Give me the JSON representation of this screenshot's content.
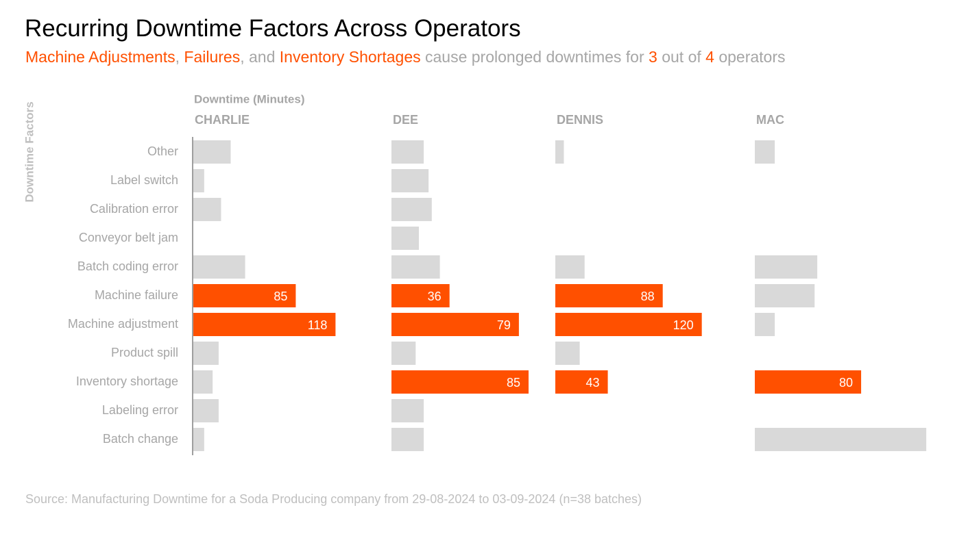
{
  "chart_data": {
    "type": "bar",
    "title": "Recurring Downtime Factors Across Operators",
    "subtitle": [
      {
        "text": "Machine Adjustments",
        "color": "#ff5000"
      },
      {
        "text": ", ",
        "color": "#a6a6a6"
      },
      {
        "text": "Failures",
        "color": "#ff5000"
      },
      {
        "text": ", and ",
        "color": "#a6a6a6"
      },
      {
        "text": "Inventory Shortages",
        "color": "#ff5000"
      },
      {
        "text": " cause prolonged downtimes for ",
        "color": "#a6a6a6"
      },
      {
        "text": "3",
        "color": "#ff5000"
      },
      {
        "text": " out of ",
        "color": "#a6a6a6"
      },
      {
        "text": "4",
        "color": "#ff5000"
      },
      {
        "text": " operators",
        "color": "#a6a6a6"
      }
    ],
    "x_label": "Downtime (Minutes)",
    "y_label": "Downtime Factors",
    "source": "Source: Manufacturing Downtime for a Soda Producing company from 29-08-2024 to 03-09-2024  (n=38 batches)",
    "color": "#d9d9d9",
    "categories": [
      "Other",
      "Label switch",
      "Calibration error",
      "Conveyor belt jam",
      "Batch coding error",
      "Machine failure",
      "Machine adjustment",
      "Product spill",
      "Inventory shortage",
      "Labeling error",
      "Batch change"
    ],
    "series": [
      {
        "name": "CHARLIE",
        "xlim": [
          0,
          165
        ],
        "values": [
          31,
          9,
          23,
          null,
          43,
          85,
          118,
          21,
          16,
          21,
          9
        ],
        "colors": [
          "#d9d9d9",
          "#d9d9d9",
          "#d9d9d9",
          "#d9d9d9",
          "#d9d9d9",
          "#ff5000",
          "#ff5000",
          "#d9d9d9",
          "#d9d9d9",
          "#d9d9d9",
          "#d9d9d9"
        ]
      },
      {
        "name": "DEE",
        "xlim": [
          0,
          102
        ],
        "values": [
          20,
          23,
          25,
          17,
          30,
          36,
          79,
          15,
          85,
          20,
          20
        ],
        "colors": [
          "#d9d9d9",
          "#d9d9d9",
          "#d9d9d9",
          "#d9d9d9",
          "#d9d9d9",
          "#ff5000",
          "#ff5000",
          "#d9d9d9",
          "#ff5000",
          "#d9d9d9",
          "#d9d9d9"
        ]
      },
      {
        "name": "DENNIS",
        "xlim": [
          0,
          164
        ],
        "values": [
          7,
          null,
          null,
          null,
          24,
          88,
          120,
          20,
          43,
          null,
          null
        ],
        "colors": [
          "#d9d9d9",
          "#d9d9d9",
          "#d9d9d9",
          "#d9d9d9",
          "#d9d9d9",
          "#ff5000",
          "#ff5000",
          "#d9d9d9",
          "#ff5000",
          "#d9d9d9",
          "#d9d9d9"
        ]
      },
      {
        "name": "MAC",
        "xlim": [
          0,
          130
        ],
        "values": [
          15,
          null,
          null,
          null,
          47,
          45,
          15,
          null,
          80,
          null,
          129
        ],
        "colors": [
          "#d9d9d9",
          "#d9d9d9",
          "#d9d9d9",
          "#d9d9d9",
          "#d9d9d9",
          "#d9d9d9",
          "#d9d9d9",
          "#d9d9d9",
          "#ff5000",
          "#d9d9d9",
          "#d9d9d9"
        ]
      }
    ]
  }
}
